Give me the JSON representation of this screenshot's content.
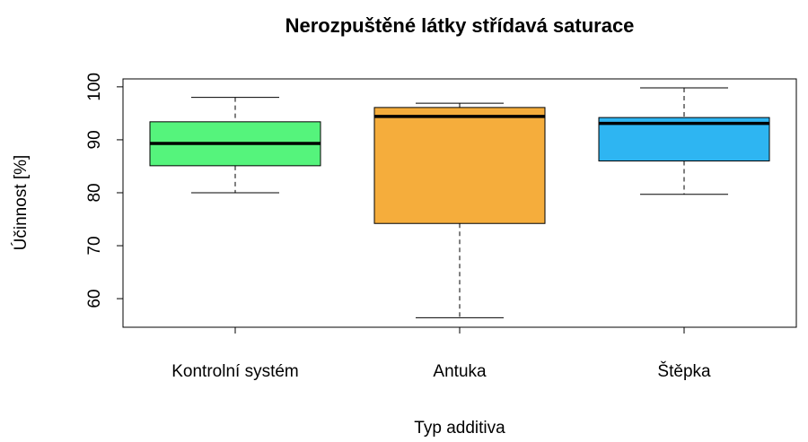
{
  "chart_data": {
    "type": "box",
    "title": "Nerozpuštěné látky střídavá saturace",
    "xlabel": "Typ additiva",
    "ylabel": "Účinnost [%]",
    "categories": [
      "Kontrolní systém",
      "Antuka",
      "Štěpka"
    ],
    "boxes": [
      {
        "min": 80.0,
        "q1": 85.1,
        "median": 89.3,
        "q3": 93.4,
        "max": 98.0,
        "color": "#55f47c"
      },
      {
        "min": 56.4,
        "q1": 74.2,
        "median": 94.4,
        "q3": 96.1,
        "max": 96.9,
        "color": "#f5ad3c"
      },
      {
        "min": 79.7,
        "q1": 86.0,
        "median": 93.1,
        "q3": 94.2,
        "max": 99.8,
        "color": "#2eb5f2"
      }
    ],
    "ylim": [
      54.6,
      101.5
    ],
    "yticks": [
      60,
      70,
      80,
      90,
      100
    ]
  }
}
